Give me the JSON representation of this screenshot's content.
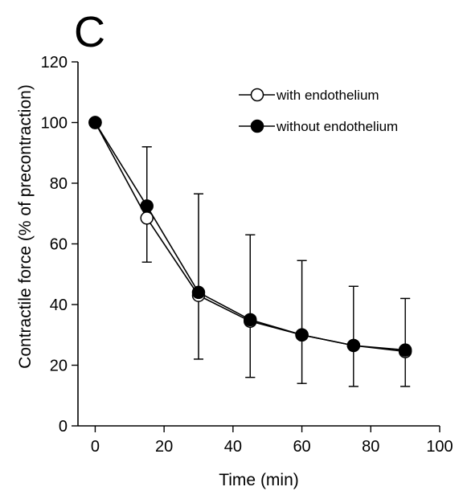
{
  "panel_label": "C",
  "chart_data": {
    "type": "line",
    "xlabel": "Time (min)",
    "ylabel": "Contractile force (% of precontraction)",
    "xlim": [
      -5,
      100
    ],
    "ylim": [
      0,
      120
    ],
    "xticks": [
      0,
      20,
      40,
      60,
      80,
      100
    ],
    "yticks": [
      0,
      20,
      40,
      60,
      80,
      100,
      120
    ],
    "legend_position": "top-right",
    "x": [
      0,
      15,
      30,
      45,
      60,
      75,
      90
    ],
    "series": [
      {
        "name": "with endothelium",
        "marker": "open-circle",
        "color": "#ffffff",
        "values": [
          100,
          68.5,
          43,
          34.5,
          30,
          26.5,
          24.5
        ],
        "error_upper": [
          100,
          92,
          76.5,
          63,
          54.5,
          46,
          42
        ],
        "error_lower": [
          100,
          54,
          22,
          16,
          14,
          13,
          13
        ]
      },
      {
        "name": "without endothelium",
        "marker": "filled-circle",
        "color": "#000000",
        "values": [
          100,
          72.5,
          44,
          35,
          30,
          26.5,
          25
        ],
        "error_upper": [
          100,
          92,
          76.5,
          63,
          54.5,
          46,
          42
        ],
        "error_lower": [
          100,
          54,
          22,
          16,
          14,
          13,
          13
        ]
      }
    ]
  }
}
